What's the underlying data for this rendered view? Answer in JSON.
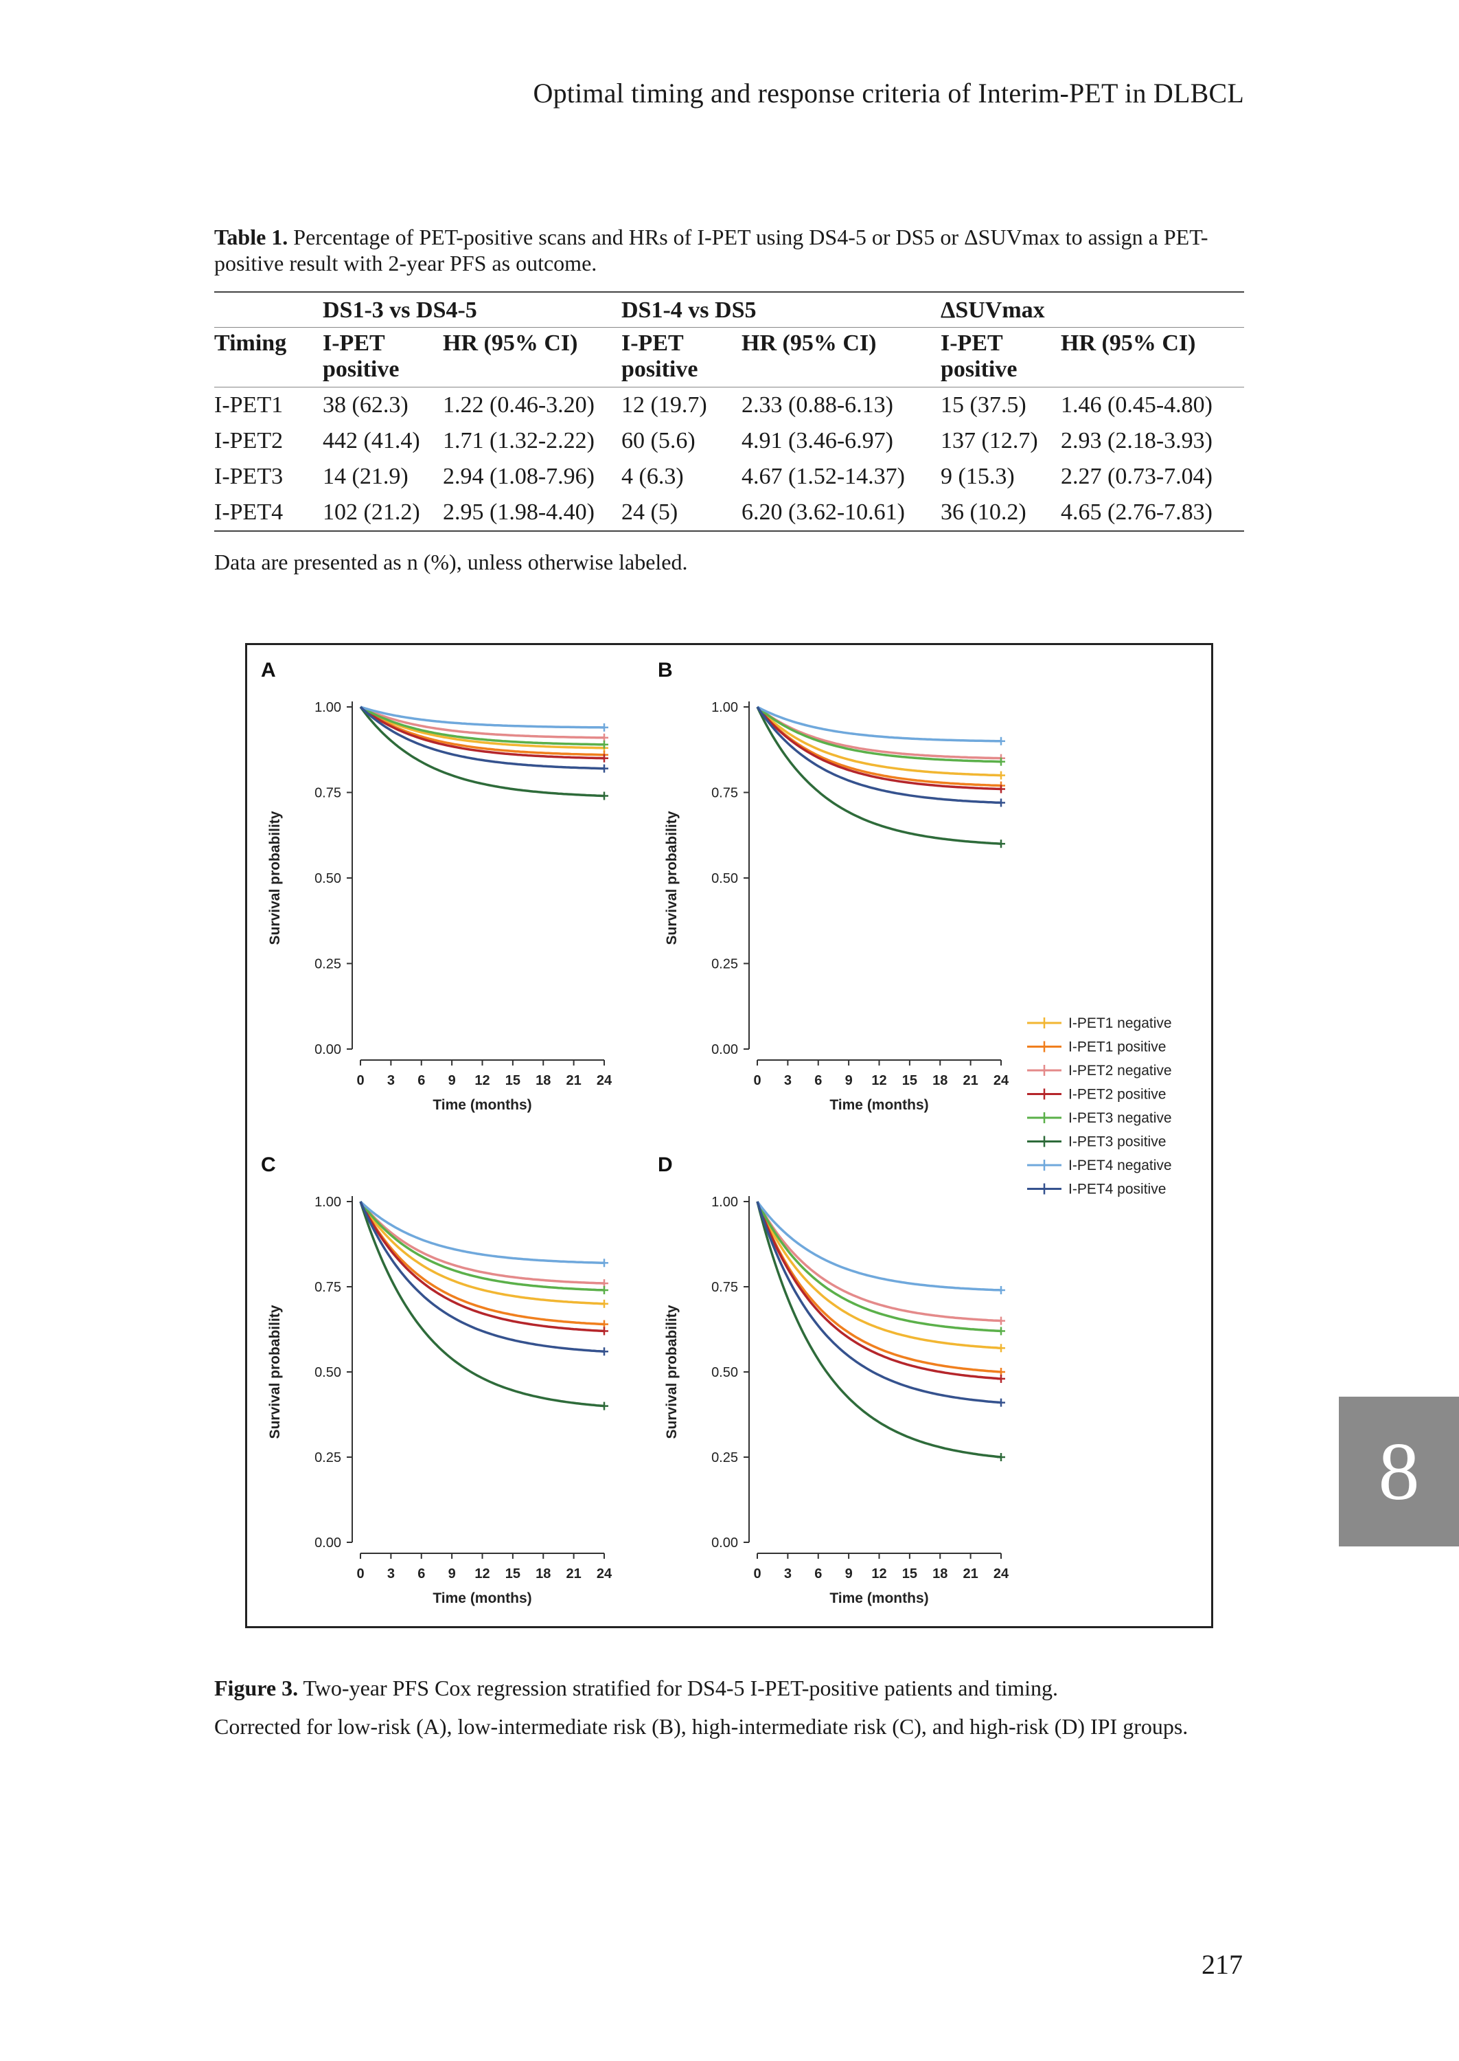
{
  "running_head": "Optimal timing and response criteria of Interim-PET in DLBCL",
  "table": {
    "caption_label": "Table 1.",
    "caption_text": " Percentage of PET-positive scans and HRs of I-PET using DS4-5 or DS5 or ΔSUVmax to assign a PET-positive result with 2-year PFS as outcome.",
    "group_headers": [
      "DS1-3 vs DS4-5",
      "DS1-4 vs DS5",
      "ΔSUVmax"
    ],
    "col_timing": "Timing",
    "col_pos": "I-PET",
    "col_pos2": "positive",
    "col_hr": "HR (95% CI)",
    "rows": [
      {
        "timing": "I-PET1",
        "c1": "38 (62.3)",
        "c2": "1.22 (0.46-3.20)",
        "c3": "12 (19.7)",
        "c4": "2.33 (0.88-6.13)",
        "c5": "15 (37.5)",
        "c6": "1.46 (0.45-4.80)"
      },
      {
        "timing": "I-PET2",
        "c1": "442 (41.4)",
        "c2": "1.71 (1.32-2.22)",
        "c3": "60 (5.6)",
        "c4": "4.91 (3.46-6.97)",
        "c5": "137 (12.7)",
        "c6": "2.93 (2.18-3.93)"
      },
      {
        "timing": "I-PET3",
        "c1": "14 (21.9)",
        "c2": "2.94 (1.08-7.96)",
        "c3": "4 (6.3)",
        "c4": "4.67 (1.52-14.37)",
        "c5": "9 (15.3)",
        "c6": "2.27 (0.73-7.04)"
      },
      {
        "timing": "I-PET4",
        "c1": "102 (21.2)",
        "c2": "2.95 (1.98-4.40)",
        "c3": "24 (5)",
        "c4": "6.20 (3.62-10.61)",
        "c5": "36 (10.2)",
        "c6": "4.65 (2.76-7.83)"
      }
    ],
    "note": "Data are presented as n (%), unless otherwise labeled."
  },
  "chart_data": {
    "type": "line",
    "xlabel": "Time (months)",
    "ylabel": "Survival probability",
    "x_ticks": [
      "0",
      "3",
      "6",
      "9",
      "12",
      "15",
      "18",
      "21",
      "24"
    ],
    "y_ticks": [
      "0.00",
      "0.25",
      "0.50",
      "0.75",
      "1.00"
    ],
    "xlim": [
      0,
      24
    ],
    "ylim": [
      0,
      1
    ],
    "legend_position": "right",
    "series_names": [
      "I-PET1 negative",
      "I-PET1 positive",
      "I-PET2 negative",
      "I-PET2 positive",
      "I-PET3 negative",
      "I-PET3 positive",
      "I-PET4 negative",
      "I-PET4 positive"
    ],
    "series_colors": [
      "#f2b632",
      "#f07f1e",
      "#e48a8a",
      "#b5262b",
      "#5bb04a",
      "#2e6b3a",
      "#6fa8dc",
      "#35528e"
    ],
    "panels": [
      {
        "label": "A",
        "end_values": [
          0.88,
          0.86,
          0.91,
          0.85,
          0.89,
          0.74,
          0.94,
          0.82
        ]
      },
      {
        "label": "B",
        "end_values": [
          0.8,
          0.77,
          0.85,
          0.76,
          0.84,
          0.6,
          0.9,
          0.72
        ]
      },
      {
        "label": "C",
        "end_values": [
          0.7,
          0.64,
          0.76,
          0.62,
          0.74,
          0.4,
          0.82,
          0.56
        ]
      },
      {
        "label": "D",
        "end_values": [
          0.57,
          0.5,
          0.65,
          0.48,
          0.62,
          0.25,
          0.74,
          0.41
        ]
      }
    ]
  },
  "figure_caption": {
    "label": "Figure 3.",
    "text": " Two-year PFS Cox regression stratified for DS4-5 I-PET-positive patients and timing.",
    "text2": "Corrected for low-risk (A), low-intermediate risk (B), high-intermediate risk (C), and high-risk (D) IPI groups."
  },
  "chapter_tab": "8",
  "page_number": "217"
}
